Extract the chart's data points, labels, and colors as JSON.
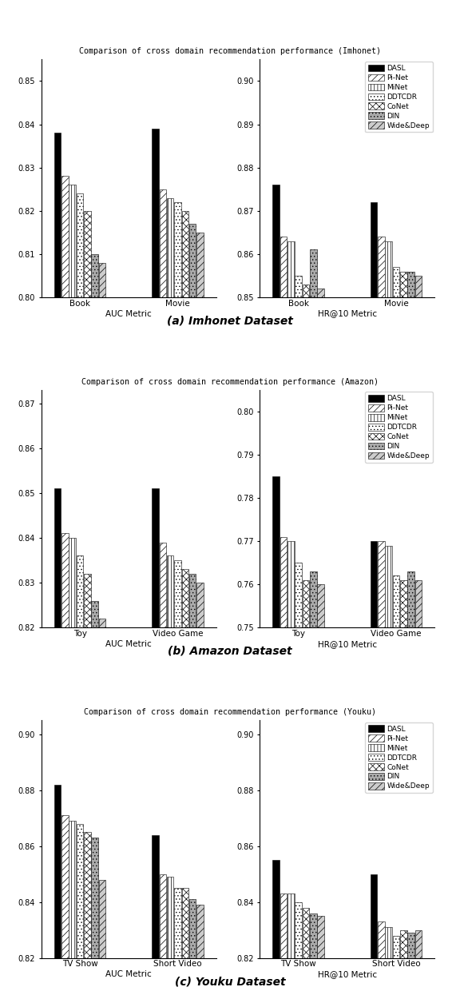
{
  "panels": [
    {
      "title": "Comparison of cross domain recommendation performance (Imhonet)",
      "caption": "(a) Imhonet Dataset",
      "subplots": [
        {
          "xlabel": "AUC Metric",
          "categories": [
            "Book",
            "Movie"
          ],
          "ylim": [
            0.8,
            0.855
          ],
          "yticks": [
            0.8,
            0.81,
            0.82,
            0.83,
            0.84,
            0.85
          ],
          "values": {
            "DASL": [
              0.838,
              0.839
            ],
            "Pi-Net": [
              0.828,
              0.825
            ],
            "MiNet": [
              0.826,
              0.823
            ],
            "DDTCDR": [
              0.824,
              0.822
            ],
            "CoNet": [
              0.82,
              0.82
            ],
            "DIN": [
              0.81,
              0.817
            ],
            "Wide&Deep": [
              0.808,
              0.815
            ]
          }
        },
        {
          "xlabel": "HR@10 Metric",
          "categories": [
            "Book",
            "Movie"
          ],
          "ylim": [
            0.85,
            0.905
          ],
          "yticks": [
            0.85,
            0.86,
            0.87,
            0.88,
            0.89,
            0.9
          ],
          "values": {
            "DASL": [
              0.876,
              0.872
            ],
            "Pi-Net": [
              0.864,
              0.864
            ],
            "MiNet": [
              0.863,
              0.863
            ],
            "DDTCDR": [
              0.855,
              0.857
            ],
            "CoNet": [
              0.853,
              0.856
            ],
            "DIN": [
              0.861,
              0.856
            ],
            "Wide&Deep": [
              0.852,
              0.855
            ]
          }
        }
      ]
    },
    {
      "title": "Comparison of cross domain recommendation performance (Amazon)",
      "caption": "(b) Amazon Dataset",
      "subplots": [
        {
          "xlabel": "AUC Metric",
          "categories": [
            "Toy",
            "Video Game"
          ],
          "ylim": [
            0.82,
            0.873
          ],
          "yticks": [
            0.82,
            0.83,
            0.84,
            0.85,
            0.86,
            0.87
          ],
          "values": {
            "DASL": [
              0.851,
              0.851
            ],
            "Pi-Net": [
              0.841,
              0.839
            ],
            "MiNet": [
              0.84,
              0.836
            ],
            "DDTCDR": [
              0.836,
              0.835
            ],
            "CoNet": [
              0.832,
              0.833
            ],
            "DIN": [
              0.826,
              0.832
            ],
            "Wide&Deep": [
              0.822,
              0.83
            ]
          }
        },
        {
          "xlabel": "HR@10 Metric",
          "categories": [
            "Toy",
            "Video Game"
          ],
          "ylim": [
            0.75,
            0.805
          ],
          "yticks": [
            0.75,
            0.76,
            0.77,
            0.78,
            0.79,
            0.8
          ],
          "values": {
            "DASL": [
              0.785,
              0.77
            ],
            "Pi-Net": [
              0.771,
              0.77
            ],
            "MiNet": [
              0.77,
              0.769
            ],
            "DDTCDR": [
              0.765,
              0.762
            ],
            "CoNet": [
              0.761,
              0.761
            ],
            "DIN": [
              0.763,
              0.763
            ],
            "Wide&Deep": [
              0.76,
              0.761
            ]
          }
        }
      ]
    },
    {
      "title": "Comparison of cross domain recommendation performance (Youku)",
      "caption": "(c) Youku Dataset",
      "subplots": [
        {
          "xlabel": "AUC Metric",
          "categories": [
            "TV Show",
            "Short Video"
          ],
          "ylim": [
            0.82,
            0.905
          ],
          "yticks": [
            0.82,
            0.84,
            0.86,
            0.88,
            0.9
          ],
          "values": {
            "DASL": [
              0.882,
              0.864
            ],
            "Pi-Net": [
              0.871,
              0.85
            ],
            "MiNet": [
              0.869,
              0.849
            ],
            "DDTCDR": [
              0.868,
              0.845
            ],
            "CoNet": [
              0.865,
              0.845
            ],
            "DIN": [
              0.863,
              0.841
            ],
            "Wide&Deep": [
              0.848,
              0.839
            ]
          }
        },
        {
          "xlabel": "HR@10 Metric",
          "categories": [
            "TV Show",
            "Short Video"
          ],
          "ylim": [
            0.82,
            0.905
          ],
          "yticks": [
            0.82,
            0.84,
            0.86,
            0.88,
            0.9
          ],
          "values": {
            "DASL": [
              0.855,
              0.85
            ],
            "Pi-Net": [
              0.843,
              0.833
            ],
            "MiNet": [
              0.843,
              0.831
            ],
            "DDTCDR": [
              0.84,
              0.828
            ],
            "CoNet": [
              0.838,
              0.83
            ],
            "DIN": [
              0.836,
              0.829
            ],
            "Wide&Deep": [
              0.835,
              0.83
            ]
          }
        }
      ]
    }
  ],
  "models": [
    "DASL",
    "Pi-Net",
    "MiNet",
    "DDTCDR",
    "CoNet",
    "DIN",
    "Wide&Deep"
  ]
}
